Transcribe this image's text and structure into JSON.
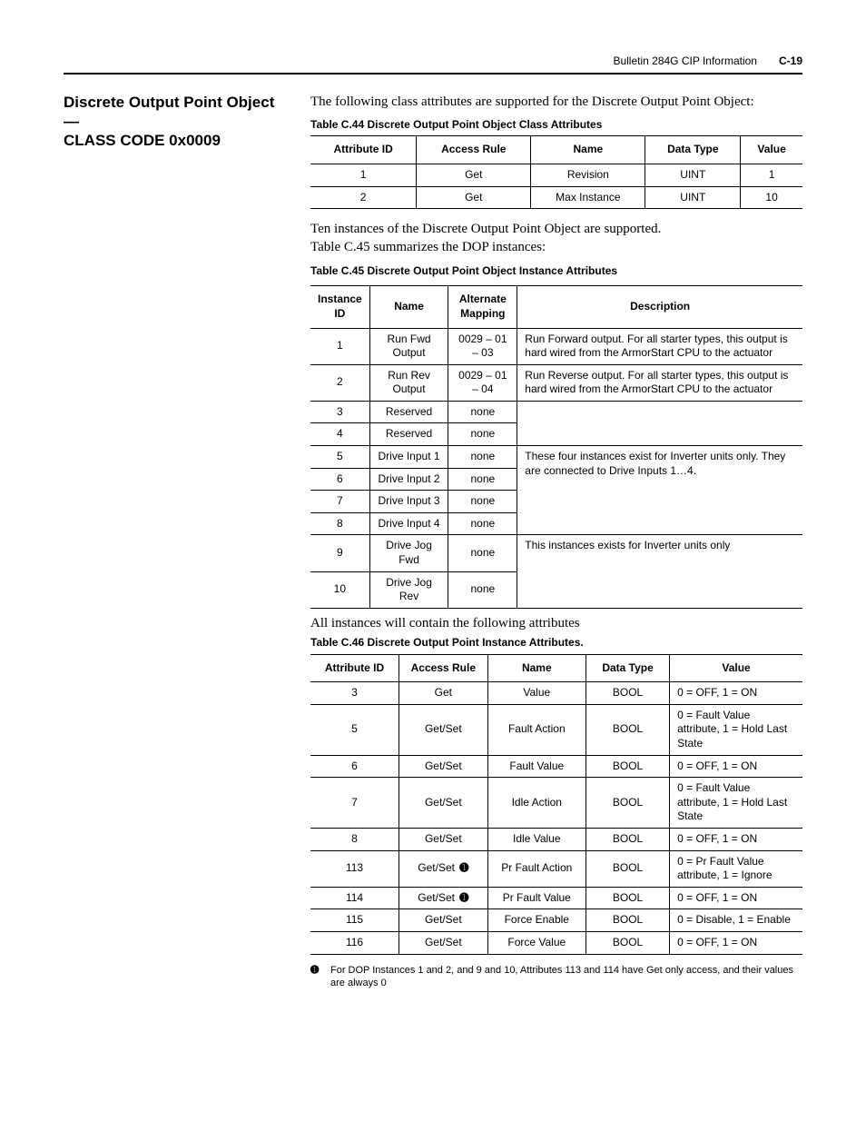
{
  "header": {
    "doc_title": "Bulletin 284G CIP Information",
    "page_num": "C-19"
  },
  "section": {
    "title_line1": "Discrete Output Point Object —",
    "title_line2": "CLASS CODE 0x0009",
    "intro1": "The following class attributes are supported for the Discrete Output Point Object:"
  },
  "table44": {
    "caption": "Table C.44   Discrete Output Point Object Class Attributes",
    "columns": [
      "Attribute ID",
      "Access Rule",
      "Name",
      "Data Type",
      "Value"
    ],
    "rows": [
      [
        "1",
        "Get",
        "Revision",
        "UINT",
        "1"
      ],
      [
        "2",
        "Get",
        "Max Instance",
        "UINT",
        "10"
      ]
    ]
  },
  "intro2a": "Ten instances of the Discrete Output Point Object are supported.",
  "intro2b": "Table C.45 summarizes the DOP instances:",
  "table45": {
    "caption": "Table C.45   Discrete Output Point Object Instance Attributes",
    "columns": [
      "Instance ID",
      "Name",
      "Alternate Mapping",
      "Description"
    ],
    "rows": [
      {
        "id": "1",
        "name": "Run Fwd Output",
        "alt": "0029 – 01 – 03",
        "desc": "Run Forward output. For all starter types, this output is hard wired from the ArmorStart CPU to the actuator"
      },
      {
        "id": "2",
        "name": "Run Rev Output",
        "alt": "0029 – 01 – 04",
        "desc": "Run Reverse output. For all starter types, this output is hard wired from the ArmorStart CPU to the actuator"
      },
      {
        "id": "3",
        "name": "Reserved",
        "alt": "none",
        "desc": ""
      },
      {
        "id": "4",
        "name": "Reserved",
        "alt": "none",
        "desc": ""
      },
      {
        "id": "5",
        "name": "Drive Input 1",
        "alt": "none",
        "desc": "These four instances exist for Inverter units only. They are connected to Drive Inputs 1…4."
      },
      {
        "id": "6",
        "name": "Drive Input 2",
        "alt": "none",
        "desc": ""
      },
      {
        "id": "7",
        "name": "Drive Input 3",
        "alt": "none",
        "desc": ""
      },
      {
        "id": "8",
        "name": "Drive Input 4",
        "alt": "none",
        "desc": ""
      },
      {
        "id": "9",
        "name": "Drive Jog Fwd",
        "alt": "none",
        "desc": "This instances exists for Inverter units only"
      },
      {
        "id": "10",
        "name": "Drive Jog Rev",
        "alt": "none",
        "desc": ""
      }
    ]
  },
  "intro3": "All instances will contain the following attributes",
  "table46": {
    "caption": "Table C.46   Discrete Output Point Instance Attributes.",
    "columns": [
      "Attribute ID",
      "Access Rule",
      "Name",
      "Data Type",
      "Value"
    ],
    "rows": [
      {
        "id": "3",
        "access": "Get",
        "mark": "",
        "name": "Value",
        "type": "BOOL",
        "value": "0 = OFF, 1 = ON"
      },
      {
        "id": "5",
        "access": "Get/Set",
        "mark": "",
        "name": "Fault Action",
        "type": "BOOL",
        "value": "0 = Fault Value attribute, 1 = Hold Last State"
      },
      {
        "id": "6",
        "access": "Get/Set",
        "mark": "",
        "name": "Fault Value",
        "type": "BOOL",
        "value": "0 = OFF, 1 = ON"
      },
      {
        "id": "7",
        "access": "Get/Set",
        "mark": "",
        "name": "Idle Action",
        "type": "BOOL",
        "value": "0 = Fault Value attribute, 1 = Hold Last State"
      },
      {
        "id": "8",
        "access": "Get/Set",
        "mark": "",
        "name": "Idle Value",
        "type": "BOOL",
        "value": "0 = OFF, 1 = ON"
      },
      {
        "id": "113",
        "access": "Get/Set",
        "mark": "➊",
        "name": "Pr Fault Action",
        "type": "BOOL",
        "value": "0 = Pr Fault Value attribute, 1 = Ignore"
      },
      {
        "id": "114",
        "access": "Get/Set",
        "mark": "➊",
        "name": "Pr Fault Value",
        "type": "BOOL",
        "value": "0 = OFF, 1 = ON"
      },
      {
        "id": "115",
        "access": "Get/Set",
        "mark": "",
        "name": "Force Enable",
        "type": "BOOL",
        "value": "0 = Disable, 1 = Enable"
      },
      {
        "id": "116",
        "access": "Get/Set",
        "mark": "",
        "name": "Force Value",
        "type": "BOOL",
        "value": "0 = OFF, 1 = ON"
      }
    ]
  },
  "footnote": {
    "marker": "➊",
    "text": "For DOP Instances 1 and 2, and 9 and 10, Attributes 113 and 114 have Get only access, and their values are always 0"
  }
}
